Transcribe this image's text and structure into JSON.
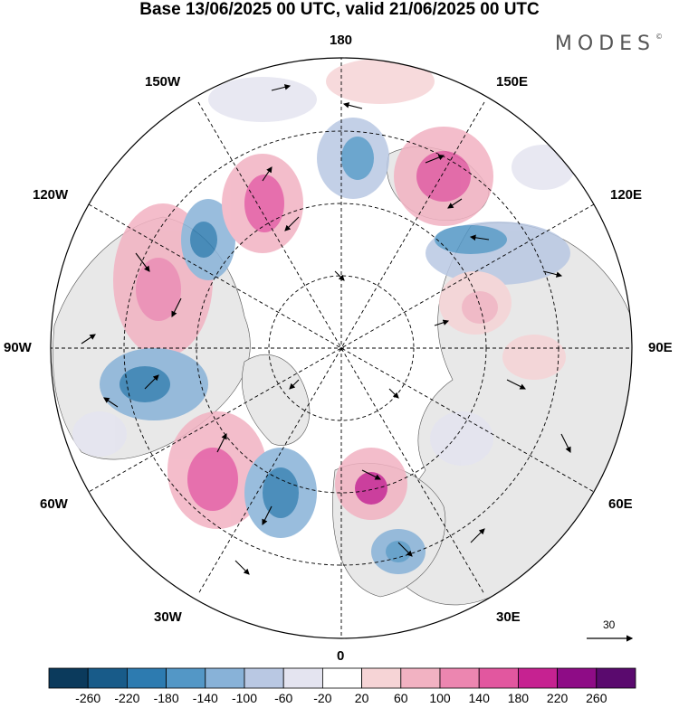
{
  "title": "Base 13/06/2025 00 UTC, valid 21/06/2025 00 UTC",
  "brand": {
    "name": "MODES",
    "mark": "©"
  },
  "longitude_labels": {
    "top": "180",
    "bottom": "0",
    "left": "90W",
    "right": "90E",
    "upper_left_1": "150W",
    "upper_left_2": "120W",
    "upper_right_1": "150E",
    "upper_right_2": "120E",
    "lower_left_1": "60W",
    "lower_left_2": "30W",
    "lower_right_1": "60E",
    "lower_right_2": "30E"
  },
  "vector_scale": {
    "value": "30"
  },
  "colorbar": {
    "labels": [
      "-260",
      "-220",
      "-180",
      "-140",
      "-100",
      "-60",
      "-20",
      "20",
      "60",
      "100",
      "140",
      "180",
      "220",
      "260"
    ],
    "colors": [
      "#0b3a5c",
      "#185b89",
      "#2d7bb0",
      "#5397c6",
      "#88b2d8",
      "#b9c8e3",
      "#e4e4f0",
      "#ffffff",
      "#f6d4d6",
      "#f2b2c2",
      "#ec86b0",
      "#e2579f",
      "#c62291",
      "#8e0c86",
      "#5a0a6e"
    ]
  },
  "map": {
    "land_color": "#e8e8e8",
    "ocean_color": "#ffffff"
  }
}
